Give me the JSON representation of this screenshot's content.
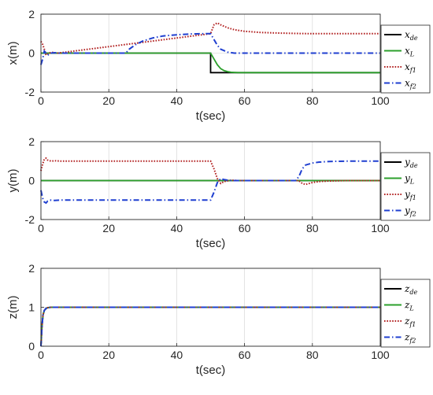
{
  "chart_data": [
    {
      "type": "line",
      "ylabel": "x(m)",
      "xlabel": "t(sec)",
      "xlim": [
        0,
        100
      ],
      "ylim": [
        -2,
        2
      ],
      "xticks": [
        "0",
        "20",
        "40",
        "60",
        "80",
        "100"
      ],
      "yticks": [
        "-2",
        "0",
        "2"
      ],
      "grid": true,
      "legend_placement": "outside-right",
      "series": [
        {
          "name": "x",
          "sub": "de",
          "color": "#000000",
          "style": "solid",
          "x": [
            0,
            50,
            50,
            100
          ],
          "y": [
            0,
            0,
            -1,
            -1
          ]
        },
        {
          "name": "x",
          "sub": "L",
          "color": "#2ca02c",
          "style": "solid",
          "x": [
            0,
            50,
            51,
            52,
            53,
            54,
            55,
            56,
            58,
            60,
            100
          ],
          "y": [
            0,
            0,
            -0.3,
            -0.6,
            -0.8,
            -0.9,
            -0.95,
            -0.98,
            -1,
            -1,
            -1
          ]
        },
        {
          "name": "x",
          "sub": "f1",
          "color": "#b22222",
          "style": "dotted",
          "x": [
            0,
            0.5,
            1,
            1.5,
            2,
            3,
            4,
            5,
            50,
            51,
            52,
            53,
            55,
            57,
            60,
            65,
            70,
            75,
            80,
            100
          ],
          "y": [
            0.6,
            0.45,
            0.2,
            -0.1,
            -0.05,
            0.05,
            0.02,
            0,
            1,
            1.45,
            1.55,
            1.45,
            1.3,
            1.2,
            1.12,
            1.06,
            1.03,
            1.01,
            1,
            1
          ]
        },
        {
          "name": "x",
          "sub": "f2",
          "color": "#1f3fd0",
          "style": "dashdot",
          "x": [
            0,
            0.5,
            1,
            1.5,
            2,
            3,
            4,
            5,
            25,
            26,
            28,
            30,
            33,
            36,
            40,
            44,
            48,
            50,
            51,
            52,
            53,
            55,
            57,
            60,
            100
          ],
          "y": [
            -0.6,
            -0.3,
            0.1,
            0,
            -0.1,
            0,
            0.02,
            0,
            0,
            0.2,
            0.45,
            0.62,
            0.78,
            0.88,
            0.94,
            0.98,
            1,
            1,
            0.7,
            0.4,
            0.2,
            0.05,
            0,
            0,
            0
          ]
        }
      ]
    },
    {
      "type": "line",
      "ylabel": "y(m)",
      "xlabel": "t(sec)",
      "xlim": [
        0,
        100
      ],
      "ylim": [
        -2,
        2
      ],
      "xticks": [
        "0",
        "20",
        "40",
        "60",
        "80",
        "100"
      ],
      "yticks": [
        "-2",
        "0",
        "2"
      ],
      "grid": true,
      "legend_placement": "outside-right",
      "series": [
        {
          "name": "y",
          "sub": "de",
          "color": "#000000",
          "style": "solid",
          "x": [
            0,
            100
          ],
          "y": [
            0,
            0
          ]
        },
        {
          "name": "y",
          "sub": "L",
          "color": "#2ca02c",
          "style": "solid",
          "x": [
            0,
            100
          ],
          "y": [
            0,
            0
          ]
        },
        {
          "name": "y",
          "sub": "f1",
          "color": "#b22222",
          "style": "dotted",
          "x": [
            0,
            0.5,
            1,
            1.5,
            2,
            3,
            4,
            6,
            50,
            51,
            52,
            53,
            54,
            56,
            58,
            76,
            77,
            78,
            80,
            82,
            85,
            90,
            100
          ],
          "y": [
            0.5,
            0.85,
            1.1,
            1.15,
            1.05,
            1,
            1.02,
            1,
            1,
            0.6,
            0.1,
            -0.15,
            -0.05,
            0.02,
            0,
            0,
            -0.15,
            -0.2,
            -0.1,
            -0.05,
            -0.02,
            0,
            0
          ]
        },
        {
          "name": "y",
          "sub": "f2",
          "color": "#1f3fd0",
          "style": "dashdot",
          "x": [
            0,
            0.5,
            1,
            1.5,
            2,
            3,
            4,
            6,
            50,
            51,
            52,
            53,
            54,
            56,
            58,
            75,
            76,
            77,
            78,
            80,
            82,
            85,
            90,
            100
          ],
          "y": [
            -0.5,
            -0.9,
            -1.1,
            -1.15,
            -1.05,
            -1,
            -1.02,
            -1,
            -1,
            -0.6,
            -0.1,
            0.1,
            0.05,
            0,
            0,
            0,
            0.2,
            0.6,
            0.8,
            0.9,
            0.95,
            0.98,
            1,
            1
          ]
        }
      ]
    },
    {
      "type": "line",
      "ylabel": "z(m)",
      "xlabel": "t(sec)",
      "xlim": [
        0,
        100
      ],
      "ylim": [
        0,
        2
      ],
      "xticks": [
        "0",
        "20",
        "40",
        "60",
        "80",
        "100"
      ],
      "yticks": [
        "0",
        "1",
        "2"
      ],
      "grid": true,
      "legend_placement": "outside-right",
      "series": [
        {
          "name": "z",
          "sub": "de",
          "color": "#000000",
          "style": "solid",
          "x": [
            0,
            0.3,
            0.6,
            1,
            1.5,
            2,
            3,
            100
          ],
          "y": [
            0,
            0.5,
            0.8,
            0.92,
            0.97,
            0.99,
            1,
            1
          ]
        },
        {
          "name": "z",
          "sub": "L",
          "color": "#2ca02c",
          "style": "solid",
          "x": [
            0,
            0.3,
            0.6,
            1,
            1.5,
            2,
            3,
            100
          ],
          "y": [
            0,
            0.5,
            0.8,
            0.92,
            0.97,
            0.99,
            1,
            1
          ]
        },
        {
          "name": "z",
          "sub": "f1",
          "color": "#b22222",
          "style": "dotted",
          "x": [
            0,
            0.3,
            0.6,
            1,
            1.5,
            2,
            3,
            100
          ],
          "y": [
            0,
            0.5,
            0.8,
            0.92,
            0.97,
            0.99,
            1,
            1
          ]
        },
        {
          "name": "z",
          "sub": "f2",
          "color": "#1f3fd0",
          "style": "dashdot",
          "x": [
            0,
            0.3,
            0.6,
            1,
            1.5,
            2,
            3,
            100
          ],
          "y": [
            0,
            0.5,
            0.8,
            0.92,
            0.97,
            0.99,
            1,
            1
          ]
        }
      ]
    }
  ]
}
